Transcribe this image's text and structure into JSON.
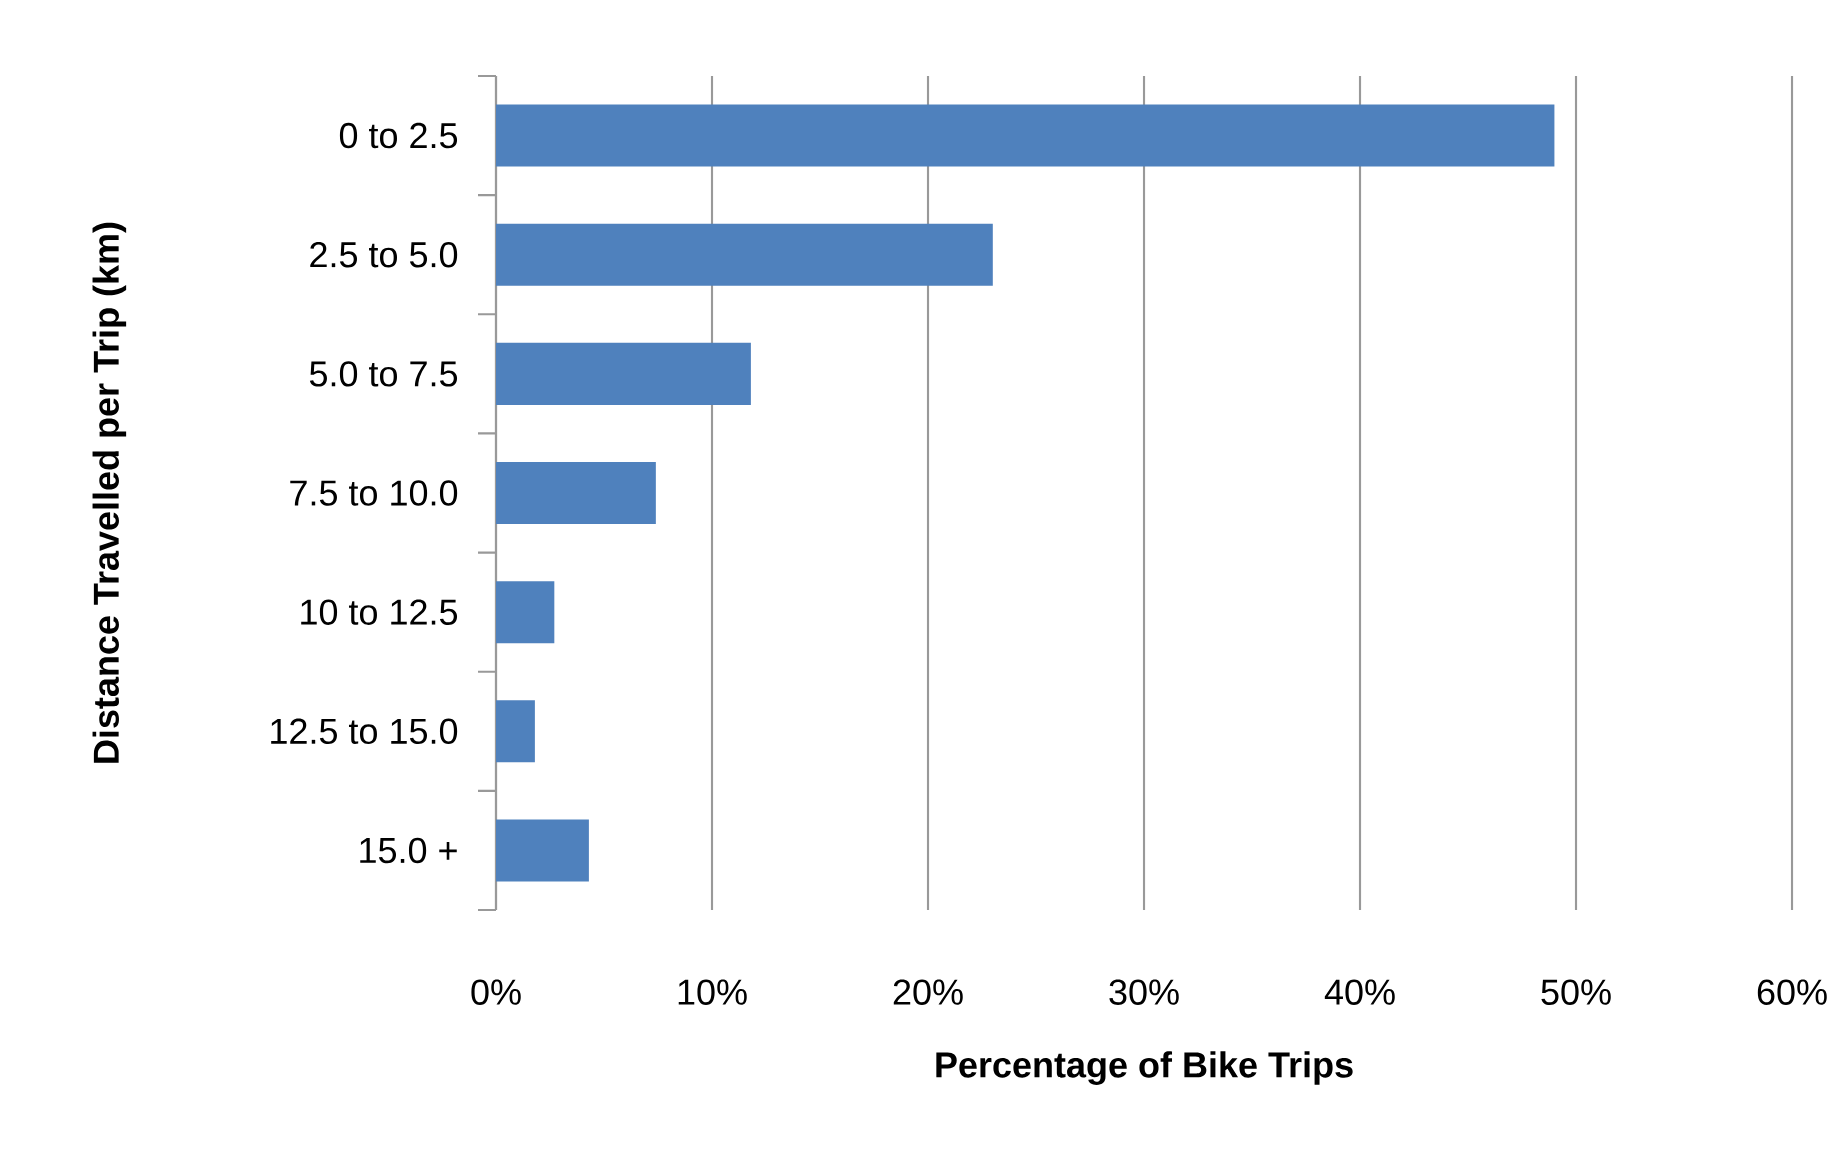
{
  "chart_data": {
    "type": "bar",
    "orientation": "horizontal",
    "xlabel": "Percentage of Bike Trips",
    "ylabel": "Distance Travelled per Trip (km)",
    "categories": [
      "0 to 2.5",
      "2.5 to 5.0",
      "5.0 to 7.5",
      "7.5 to 10.0",
      "10 to 12.5",
      "12.5 to 15.0",
      "15.0 +"
    ],
    "values": [
      49.0,
      23.0,
      11.8,
      7.4,
      2.7,
      1.8,
      4.3
    ],
    "color": "#4f81bd",
    "xlim": [
      0,
      60
    ],
    "xticks": [
      {
        "value": 0,
        "label": "0%"
      },
      {
        "value": 10,
        "label": "10%"
      },
      {
        "value": 20,
        "label": "20%"
      },
      {
        "value": 30,
        "label": "30%"
      },
      {
        "value": 40,
        "label": "40%"
      },
      {
        "value": 50,
        "label": "50%"
      },
      {
        "value": 60,
        "label": "60%"
      }
    ],
    "grid": "x"
  }
}
